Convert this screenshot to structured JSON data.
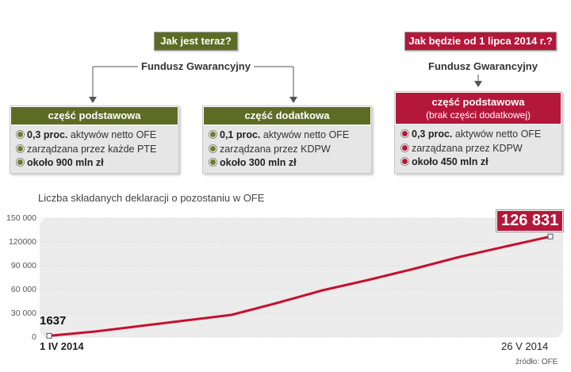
{
  "top": {
    "now_label": "Jak jest teraz?",
    "future_label": "Jak będzie od 1 lipca 2014 r.?",
    "fund_left": "Fundusz Gwarancyjny",
    "fund_right": "Fundusz Gwarancyjny",
    "colors": {
      "green": "#5e6b24",
      "red": "#b5173a"
    }
  },
  "cards": [
    {
      "title": "część podstawowa",
      "subtitle": "",
      "items": [
        {
          "bold": "0,3 proc.",
          "text": " aktywów netto OFE"
        },
        {
          "bold": "",
          "text": "zarządzana przez każde PTE"
        },
        {
          "bold": "około 900 mln zł",
          "text": ""
        }
      ]
    },
    {
      "title": "część dodatkowa",
      "subtitle": "",
      "items": [
        {
          "bold": "0,1 proc.",
          "text": " aktywów netto OFE"
        },
        {
          "bold": "",
          "text": "zarządzana przez KDPW"
        },
        {
          "bold": "około 300 mln zł",
          "text": ""
        }
      ]
    },
    {
      "title": "część podstawowa",
      "subtitle": "(brak części dodatkowej)",
      "items": [
        {
          "bold": "0,3 proc.",
          "text": " aktywów netto OFE"
        },
        {
          "bold": "",
          "text": "zarządzana przez KDPW"
        },
        {
          "bold": "około 450 mln zł",
          "text": ""
        }
      ]
    }
  ],
  "chart_data": {
    "type": "line",
    "title": "Liczba składanych deklaracji o pozostaniu w OFE",
    "x_start_label": "1 IV 2014",
    "x_end_label": "26 V 2014",
    "x": [
      "2014-04-01",
      "2014-04-06",
      "2014-04-11",
      "2014-04-16",
      "2014-04-21",
      "2014-04-26",
      "2014-05-01",
      "2014-05-06",
      "2014-05-11",
      "2014-05-16",
      "2014-05-21",
      "2014-05-26"
    ],
    "values": [
      1637,
      7000,
      14000,
      21000,
      28000,
      43000,
      59000,
      72000,
      86000,
      101000,
      114000,
      126831
    ],
    "ylim": [
      0,
      150000
    ],
    "yticks": [
      "0",
      "30 000",
      "60 000",
      "90 000",
      "120000",
      "150 000"
    ],
    "start_label": "1637",
    "end_label": "126 831",
    "grid": true,
    "line_color": "#c8102e"
  },
  "source": "źródło: OFE"
}
